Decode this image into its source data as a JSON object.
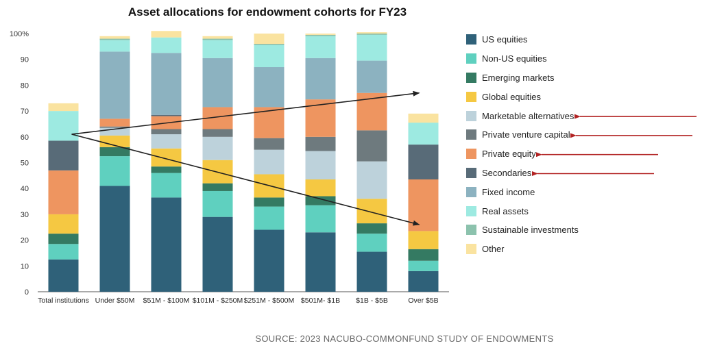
{
  "title": "Asset allocations for endowment cohorts for FY23",
  "source": "SOURCE: 2023 NACUBO-COMMONFUND STUDY OF ENDOWMENTS",
  "chart_data": {
    "type": "bar",
    "stacked": true,
    "title": "Asset allocations for endowment cohorts for FY23",
    "categories": [
      "Total institutions",
      "Under $50M",
      "$51M - $100M",
      "$101M - $250M",
      "$251M - $500M",
      "$501M- $1B",
      "$1B - $5B",
      "Over $5B"
    ],
    "ylim": [
      0,
      100
    ],
    "yticks": [
      "0",
      "10",
      "20",
      "30",
      "40",
      "50",
      "60",
      "70",
      "80",
      "90",
      "100%"
    ],
    "legend_position": "right",
    "grid": false,
    "series": [
      {
        "name": "US equities",
        "color": "#2f6179",
        "values": [
          12.5,
          41,
          36.5,
          29,
          24,
          23,
          15.5,
          8
        ]
      },
      {
        "name": "Non-US equities",
        "color": "#5fd0bf",
        "values": [
          6,
          11.5,
          9.5,
          10,
          9,
          10.5,
          7,
          4
        ]
      },
      {
        "name": "Emerging markets",
        "color": "#347a62",
        "values": [
          4,
          3.5,
          2.5,
          3,
          3.5,
          3.5,
          4,
          4.5
        ]
      },
      {
        "name": "Global equities",
        "color": "#f5c842",
        "values": [
          7.5,
          4.5,
          7,
          9,
          9,
          6.5,
          9.5,
          7
        ]
      },
      {
        "name": "Marketable alternatives",
        "color": "#bdd2db",
        "values": [
          0,
          3,
          5.5,
          9,
          9.5,
          11,
          14.5,
          0
        ]
      },
      {
        "name": "Private venture capital",
        "color": "#6e7a7e",
        "values": [
          0,
          0.5,
          2,
          3,
          4.5,
          5.5,
          12,
          0
        ]
      },
      {
        "name": "Private equity",
        "color": "#ee9560",
        "values": [
          17,
          3,
          5,
          8.5,
          12,
          14.5,
          14.5,
          20
        ]
      },
      {
        "name": "Secondaries",
        "color": "#586b78",
        "values": [
          11.5,
          0,
          0.5,
          0,
          0,
          0,
          0,
          13.5
        ]
      },
      {
        "name": "Fixed income",
        "color": "#8cb2c0",
        "values": [
          0,
          26,
          24,
          19,
          15.5,
          16,
          12.5,
          0
        ]
      },
      {
        "name": "Real assets",
        "color": "#9deae1",
        "values": [
          11.5,
          4.5,
          6,
          7,
          8.5,
          8.5,
          10,
          8.5
        ]
      },
      {
        "name": "Sustainable investments",
        "color": "#8cc2ad",
        "values": [
          0,
          0.5,
          0,
          0.5,
          0.5,
          0.5,
          0.5,
          0
        ]
      },
      {
        "name": "Other",
        "color": "#fae3a0",
        "values": [
          3,
          1,
          2.5,
          1,
          4,
          0.5,
          0.5,
          3.5
        ]
      }
    ],
    "annotations": [
      {
        "type": "arrow",
        "from": {
          "category": "Total institutions",
          "y": 61
        },
        "to": {
          "category": "Over $5B",
          "y": 77
        },
        "color": "#222222"
      },
      {
        "type": "arrow",
        "from": {
          "category": "Total institutions",
          "y": 61
        },
        "to": {
          "category": "Over $5B",
          "y": 26
        },
        "color": "#222222"
      }
    ],
    "highlighted_legend_entries": [
      "Marketable alternatives",
      "Private venture capital",
      "Private equity",
      "Secondaries"
    ],
    "highlight_arrow_color": "#b22222"
  }
}
